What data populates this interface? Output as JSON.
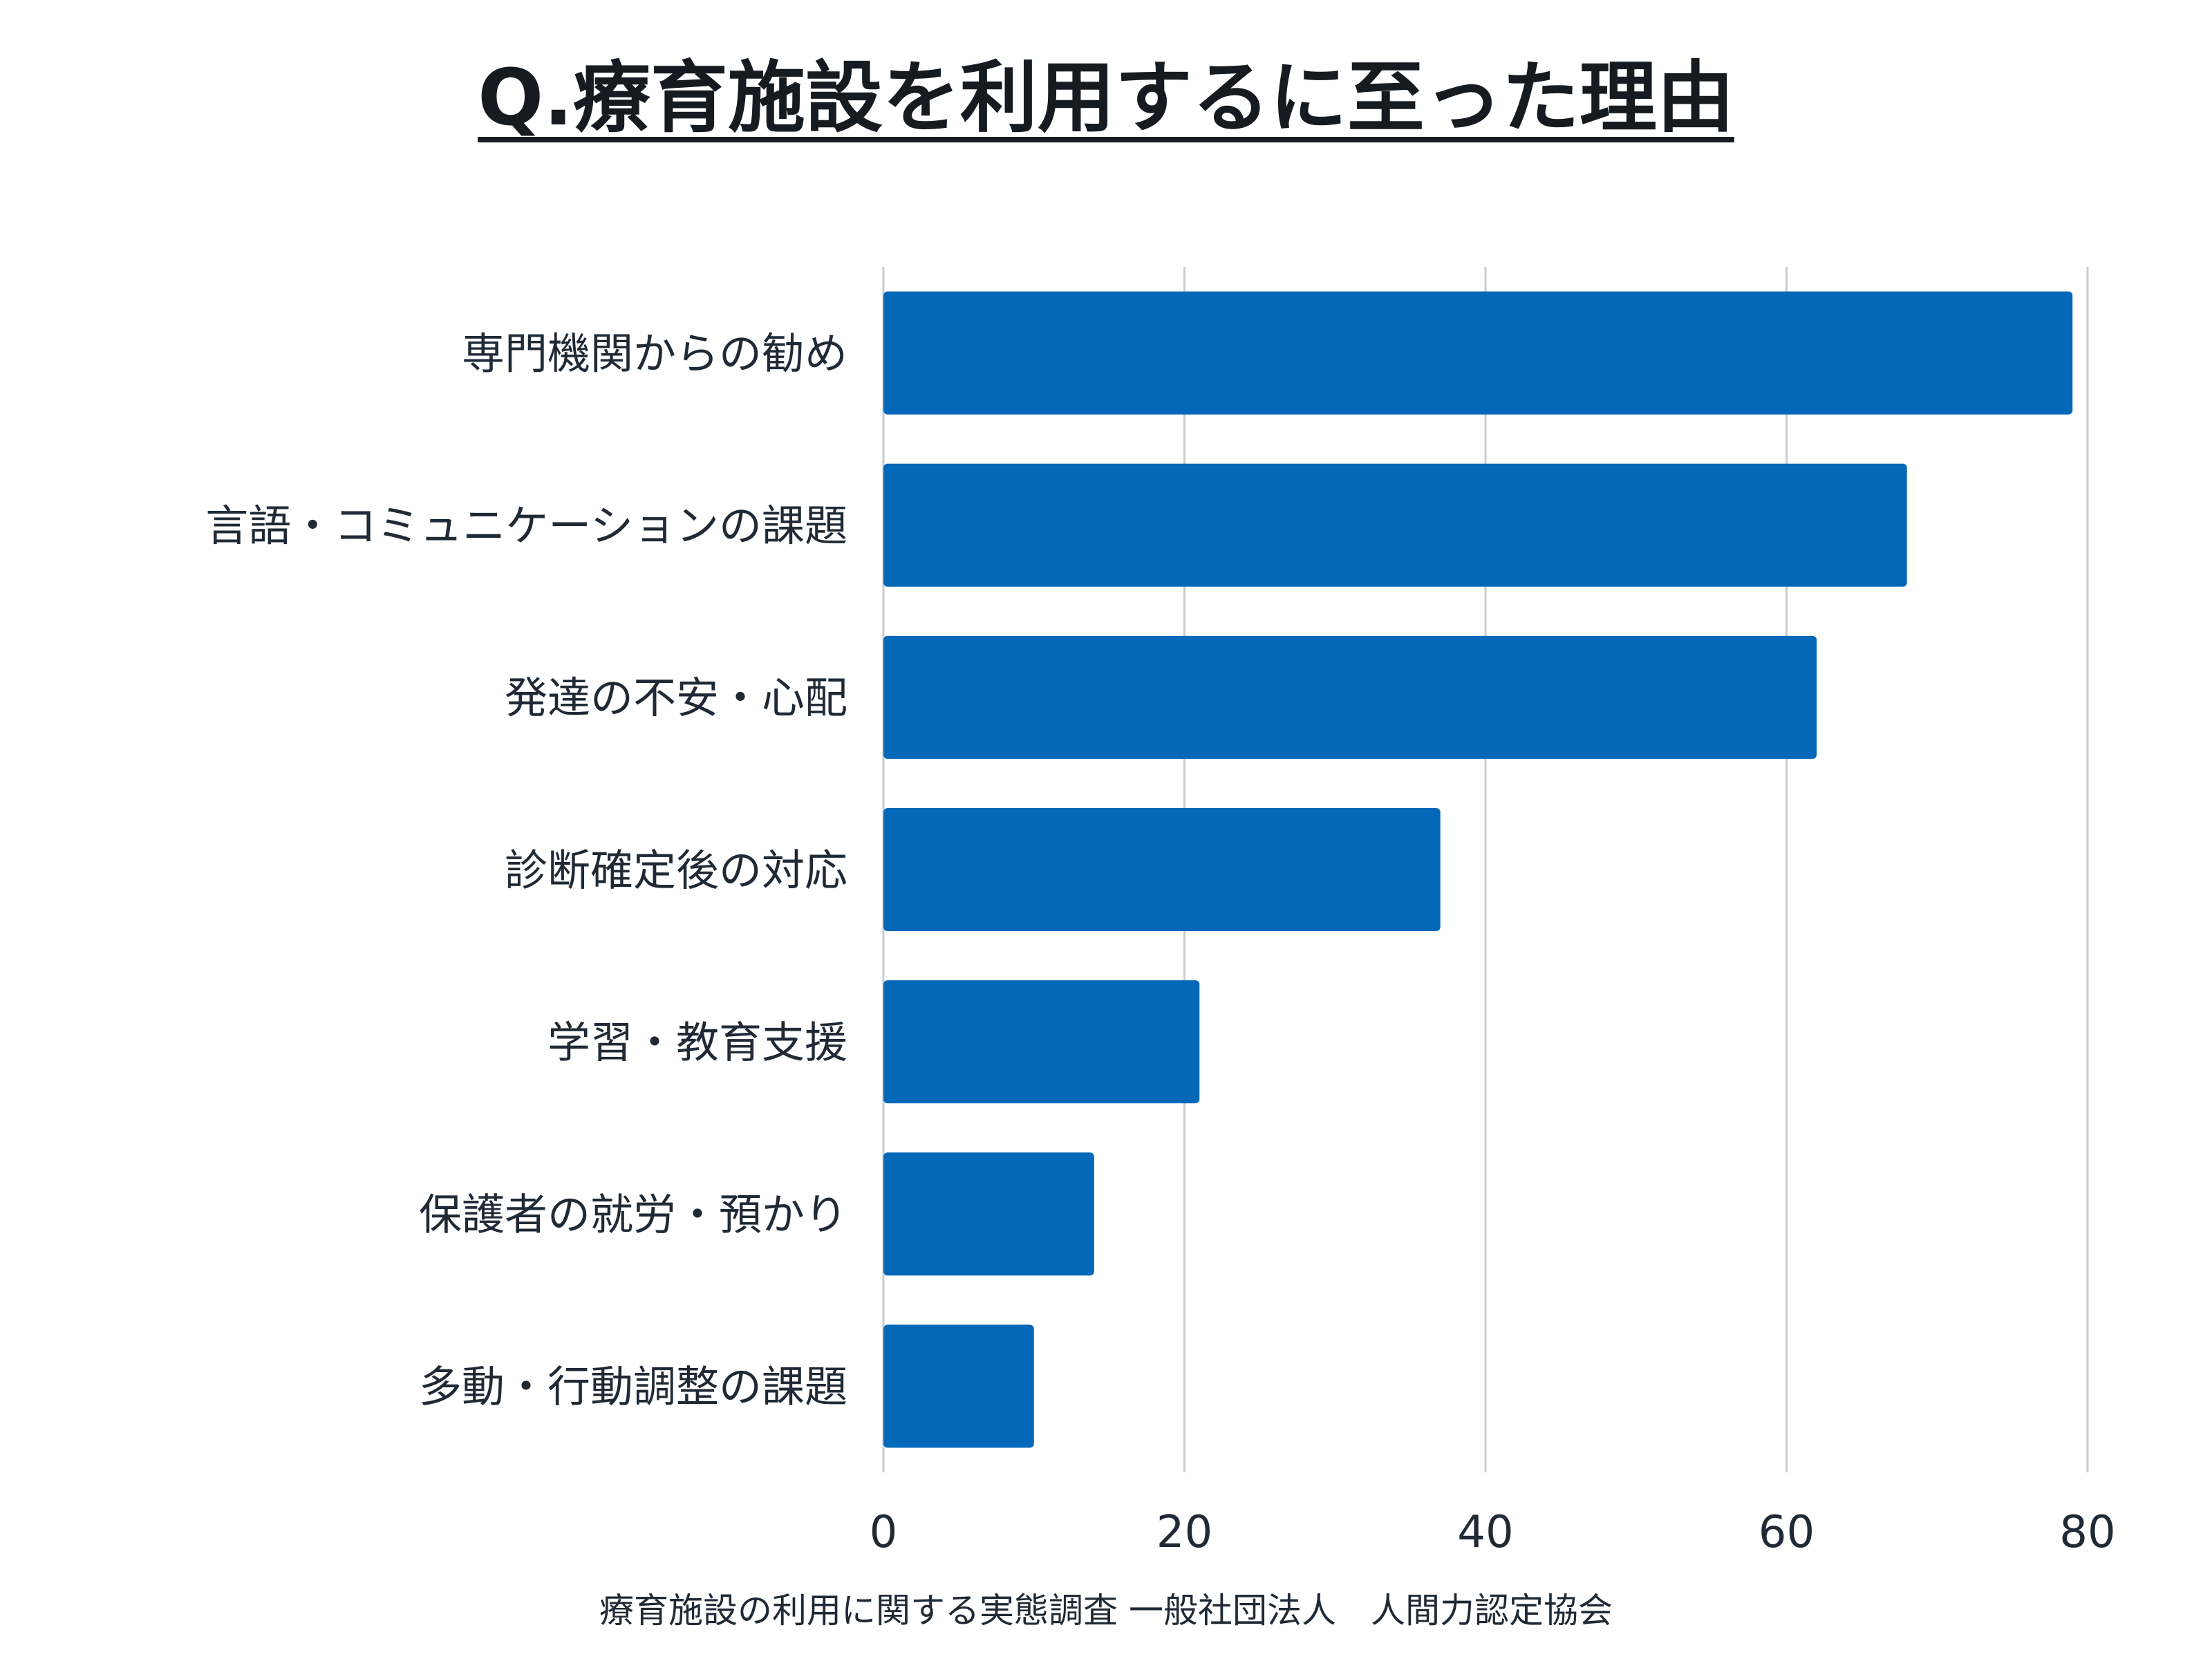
{
  "chart_data": {
    "type": "bar",
    "orientation": "horizontal",
    "title": "Q.療育施設を利用するに至った理由",
    "categories": [
      "専門機関からの勧め",
      "言語・コミュニケーションの課題",
      "発達の不安・心配",
      "診断確定後の対応",
      "学習・教育支援",
      "保護者の就労・預かり",
      "多動・行動調整の課題"
    ],
    "values": [
      79,
      68,
      62,
      37,
      21,
      14,
      10
    ],
    "xlim": [
      0,
      80
    ],
    "xticks": [
      "0",
      "20",
      "40",
      "60",
      "80"
    ],
    "grid": true,
    "bar_color": "#0468b8",
    "grid_color": "#c8ccd1",
    "source": "療育施設の利用に関する実態調査 一般社団法人　人間力認定協会"
  }
}
